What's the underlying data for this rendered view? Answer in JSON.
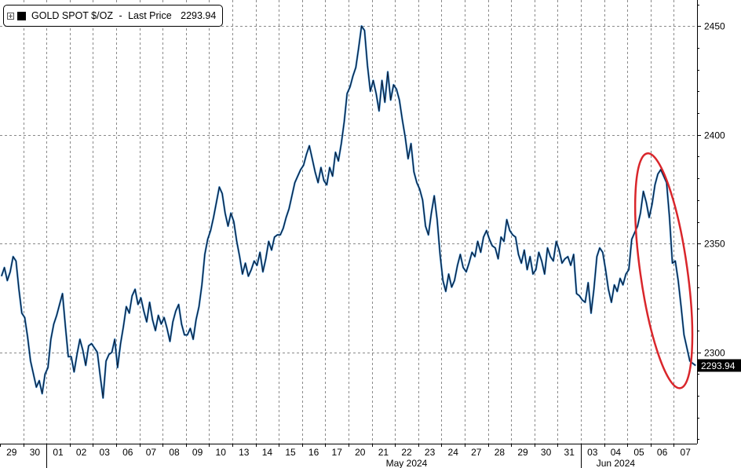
{
  "legend": {
    "toggle_icon": "plus-square-icon",
    "series_label": "GOLD SPOT $/OZ",
    "separator": " - ",
    "last_price_label": "Last Price",
    "last_price_value": "2293.94"
  },
  "annotation": {
    "shape": "red-ellipse",
    "color": "#d9262b"
  },
  "chart_data": {
    "type": "line",
    "title": "",
    "xlabel": "",
    "ylabel": "",
    "grid": true,
    "legend_position": "top-left",
    "y_axis_side": "right",
    "ylim": [
      2258,
      2462
    ],
    "yticks": [
      2300,
      2350,
      2400,
      2450
    ],
    "last_value": 2293.94,
    "last_value_label": "2293.94",
    "colors": {
      "line": "#0d1b33",
      "highlight": "#2a8ad8",
      "callout": "#d9262b",
      "grid": "#8a8a8a"
    },
    "categories": [
      "29",
      "30",
      "01",
      "02",
      "03",
      "06",
      "07",
      "08",
      "09",
      "10",
      "13",
      "14",
      "15",
      "16",
      "17",
      "20",
      "21",
      "22",
      "23",
      "24",
      "27",
      "28",
      "29",
      "30",
      "31",
      "03",
      "04",
      "05",
      "06",
      "07"
    ],
    "month_labels": [
      {
        "label": "May 2024",
        "category_index": 17
      },
      {
        "label": "Jun 2024",
        "category_index": 26
      }
    ],
    "series": [
      {
        "values": [
          [
            2335,
            2339,
            2333,
            2337,
            2344,
            2342,
            2329,
            2318
          ],
          [
            2316,
            2307,
            2296,
            2290,
            2284,
            2287,
            2281,
            2290
          ],
          [
            2293,
            2306,
            2313,
            2317,
            2322,
            2327,
            2312,
            2298
          ],
          [
            2298,
            2291,
            2299,
            2306,
            2301,
            2294,
            2303,
            2304
          ],
          [
            2302,
            2300,
            2289,
            2279,
            2296,
            2299,
            2300,
            2306
          ],
          [
            2293,
            2304,
            2312,
            2321,
            2318,
            2326,
            2329,
            2322
          ],
          [
            2325,
            2319,
            2314,
            2323,
            2315,
            2310,
            2317,
            2313
          ],
          [
            2316,
            2311,
            2305,
            2314,
            2319,
            2322,
            2313,
            2308
          ],
          [
            2308,
            2311,
            2306,
            2315,
            2321,
            2331,
            2345,
            2352
          ],
          [
            2356,
            2362,
            2369,
            2376,
            2373,
            2364,
            2358,
            2364
          ],
          [
            2360,
            2351,
            2344,
            2336,
            2341,
            2335,
            2338,
            2342
          ],
          [
            2340,
            2346,
            2337,
            2343,
            2351,
            2347,
            2353,
            2354
          ],
          [
            2354,
            2357,
            2362,
            2366,
            2372,
            2378,
            2381,
            2384
          ],
          [
            2386,
            2391,
            2395,
            2389,
            2383,
            2378,
            2385,
            2379
          ],
          [
            2377,
            2385,
            2381,
            2392,
            2388,
            2396,
            2406,
            2419
          ],
          [
            2422,
            2427,
            2431,
            2440,
            2450,
            2448,
            2432,
            2420
          ],
          [
            2425,
            2419,
            2411,
            2425,
            2415,
            2429,
            2416,
            2423
          ],
          [
            2421,
            2416,
            2407,
            2399,
            2389,
            2396,
            2383,
            2378
          ],
          [
            2375,
            2370,
            2358,
            2354,
            2364,
            2372,
            2361,
            2345
          ],
          [
            2333,
            2328,
            2336,
            2330,
            2333,
            2340,
            2345,
            2339
          ],
          [
            2337,
            2341,
            2346,
            2344,
            2351,
            2346,
            2353,
            2356
          ],
          [
            2352,
            2349,
            2348,
            2343,
            2353,
            2351,
            2361,
            2356
          ],
          [
            2354,
            2353,
            2345,
            2341,
            2347,
            2338,
            2344,
            2336
          ],
          [
            2338,
            2346,
            2342,
            2336,
            2348,
            2344,
            2342,
            2351
          ],
          [
            2347,
            2341,
            2343,
            2344,
            2340,
            2345,
            2327,
            2326
          ],
          [
            2324,
            2323,
            2332,
            2318,
            2329,
            2344,
            2348,
            2346
          ],
          [
            2338,
            2329,
            2323,
            2331,
            2328,
            2334,
            2331,
            2336
          ],
          [
            2338,
            2352,
            2355,
            2358,
            2364,
            2374,
            2369,
            2362
          ],
          [
            2368,
            2377,
            2382,
            2384,
            2381,
            2378,
            2362,
            2341
          ],
          [
            2342,
            2333,
            2321,
            2308,
            2302,
            2296,
            2294.94,
            2293.94
          ]
        ]
      }
    ]
  }
}
